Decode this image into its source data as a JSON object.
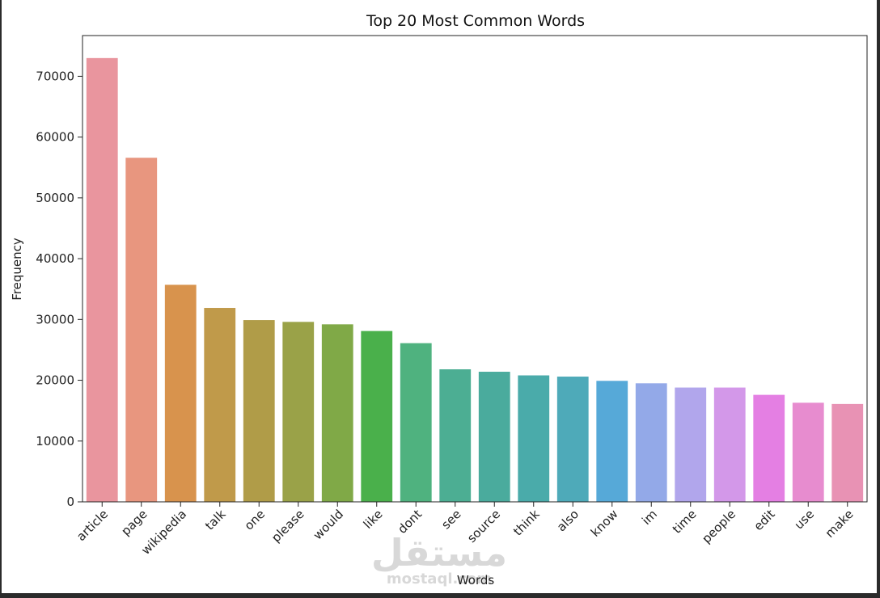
{
  "chart_data": {
    "type": "bar",
    "title": "Top 20 Most Common Words",
    "xlabel": "Words",
    "ylabel": "Frequency",
    "ylim": [
      0,
      76700
    ],
    "yticks": [
      0,
      10000,
      20000,
      30000,
      40000,
      50000,
      60000,
      70000
    ],
    "grid": false,
    "categories": [
      "article",
      "page",
      "wikipedia",
      "talk",
      "one",
      "please",
      "would",
      "like",
      "dont",
      "see",
      "source",
      "think",
      "also",
      "know",
      "im",
      "time",
      "people",
      "edit",
      "use",
      "make"
    ],
    "values": [
      73000,
      56600,
      35700,
      31900,
      29900,
      29600,
      29200,
      28100,
      26100,
      21800,
      21400,
      20800,
      20600,
      19900,
      19500,
      18800,
      18800,
      17600,
      16300,
      16100
    ],
    "colors": [
      "#e9959e",
      "#e8967f",
      "#d8934d",
      "#c09a4a",
      "#b09c48",
      "#9aa248",
      "#80a947",
      "#4ab04b",
      "#4fb27f",
      "#4cae93",
      "#4aab9d",
      "#4aabaa",
      "#4eaab9",
      "#56a9d8",
      "#93a9e8",
      "#b1a6ec",
      "#d398e9",
      "#e47fe3",
      "#e78ccf",
      "#e892b4"
    ]
  },
  "watermark": {
    "arabic": "مستقل",
    "latin": "mostaql.com"
  }
}
